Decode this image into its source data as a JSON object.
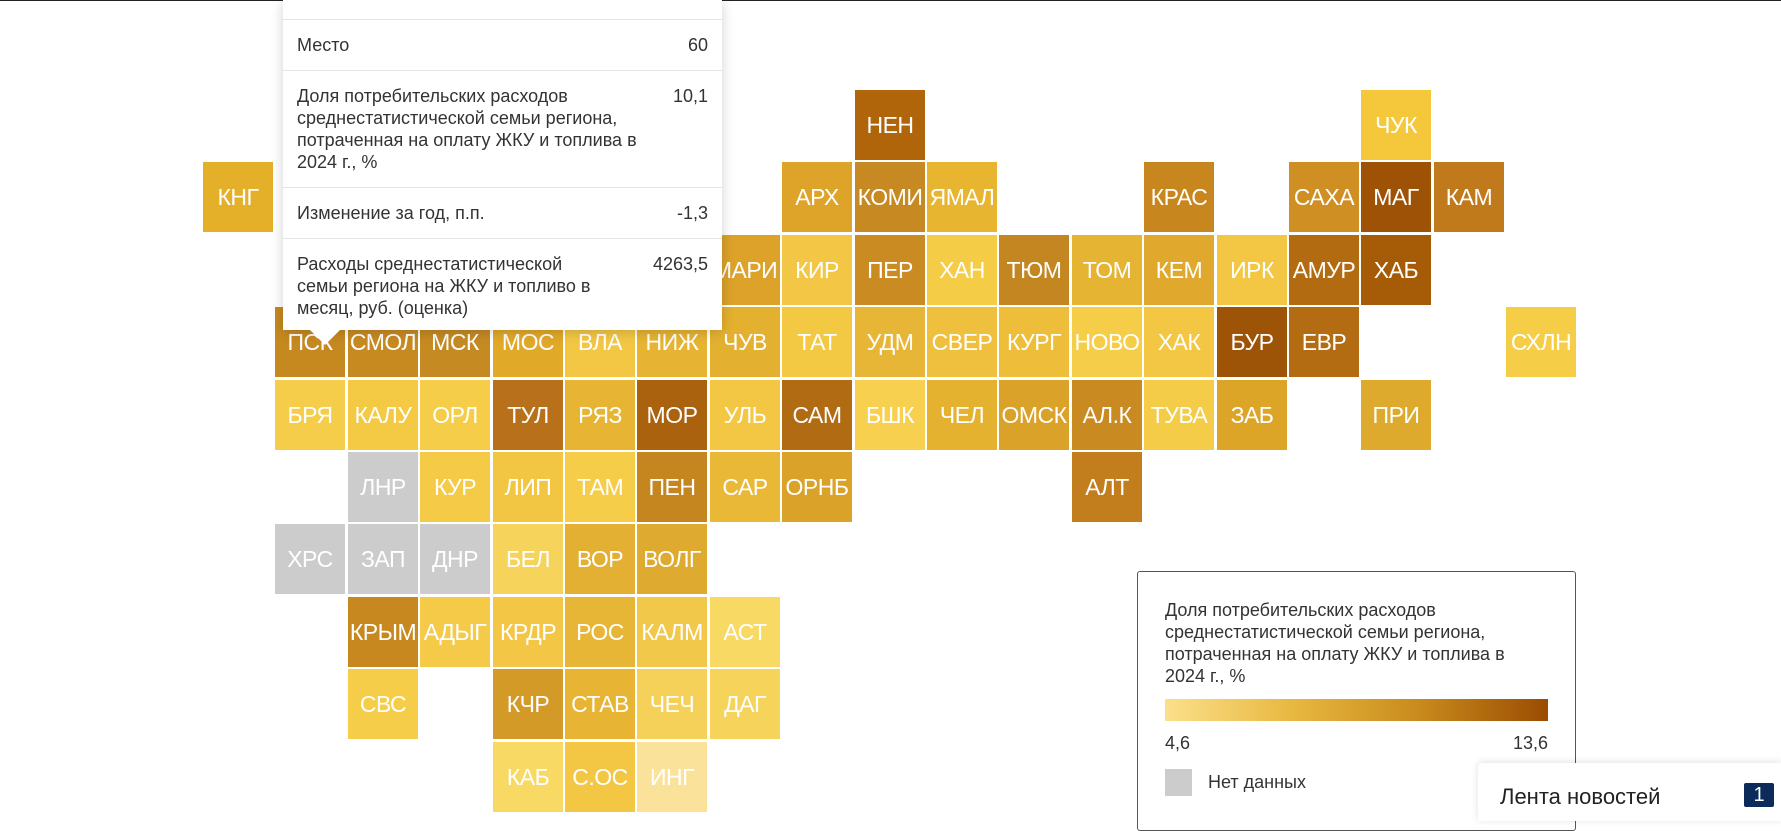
{
  "tooltip": {
    "rows": [
      {
        "label": "Место",
        "value": "60"
      },
      {
        "label": "Доля потребительских расходов среднестатистической семьи региона, потраченная на оплату ЖКУ и топлива в 2024 г., %",
        "value": "10,1"
      },
      {
        "label": "Изменение за год, п.п.",
        "value": "-1,3"
      },
      {
        "label": "Расходы среднестатистической семьи региона на ЖКУ и топливо в месяц, руб. (оценка)",
        "value": "4263,5"
      }
    ]
  },
  "legend": {
    "title": "Доля потребительских расходов среднестатистической семьи региона, потраченная на оплату ЖКУ и топлива в 2024 г., %",
    "min": "4,6",
    "max": "13,6",
    "no_data": "Нет данных",
    "colors": [
      "#fbe08a",
      "#e8b840",
      "#c88a1c",
      "#9a4c02"
    ],
    "no_data_color": "#cccccc"
  },
  "news": {
    "label": "Лента новостей",
    "count": "1"
  },
  "regions": [
    {
      "name": "НЕН",
      "col": 9,
      "row": 0,
      "color": "#b0650a"
    },
    {
      "name": "ЧУК",
      "col": 16,
      "row": 0,
      "color": "#f5c83b"
    },
    {
      "name": "КНГ",
      "col": 0,
      "row": 1,
      "color": "#e4b02a"
    },
    {
      "name": "АРХ",
      "col": 8,
      "row": 1,
      "color": "#dea42a"
    },
    {
      "name": "КОМИ",
      "col": 9,
      "row": 1,
      "color": "#c78922"
    },
    {
      "name": "ЯМАЛ",
      "col": 10,
      "row": 1,
      "color": "#e8b530"
    },
    {
      "name": "КРАС",
      "col": 13,
      "row": 1,
      "color": "#c8861f"
    },
    {
      "name": "САХА",
      "col": 15,
      "row": 1,
      "color": "#cf8f22"
    },
    {
      "name": "МАГ",
      "col": 16,
      "row": 1,
      "color": "#9e5205"
    },
    {
      "name": "КАМ",
      "col": 17,
      "row": 1,
      "color": "#c07a1c"
    },
    {
      "name": "МАРИ",
      "col": 7,
      "row": 2,
      "color": "#dca229"
    },
    {
      "name": "КИР",
      "col": 8,
      "row": 2,
      "color": "#f3c745"
    },
    {
      "name": "ПЕР",
      "col": 9,
      "row": 2,
      "color": "#c98b22"
    },
    {
      "name": "ХАН",
      "col": 10,
      "row": 2,
      "color": "#f5cc46"
    },
    {
      "name": "ТЮМ",
      "col": 11,
      "row": 2,
      "color": "#c38620"
    },
    {
      "name": "ТОМ",
      "col": 12,
      "row": 2,
      "color": "#e6b433"
    },
    {
      "name": "КЕМ",
      "col": 13,
      "row": 2,
      "color": "#e0a92d"
    },
    {
      "name": "ИРК",
      "col": 14,
      "row": 2,
      "color": "#f3c743"
    },
    {
      "name": "АМУР",
      "col": 15,
      "row": 2,
      "color": "#b26b10"
    },
    {
      "name": "ХАБ",
      "col": 16,
      "row": 2,
      "color": "#a65c07"
    },
    {
      "name": "ПСК",
      "col": 1,
      "row": 3,
      "color": "#c68920"
    },
    {
      "name": "СМОЛ",
      "col": 2,
      "row": 3,
      "color": "#c78a21"
    },
    {
      "name": "МСК",
      "col": 3,
      "row": 3,
      "color": "#c58a22"
    },
    {
      "name": "МОС",
      "col": 4,
      "row": 3,
      "color": "#e1a928"
    },
    {
      "name": "ВЛА",
      "col": 5,
      "row": 3,
      "color": "#f3c743"
    },
    {
      "name": "НИЖ",
      "col": 6,
      "row": 3,
      "color": "#e6b432"
    },
    {
      "name": "ЧУВ",
      "col": 7,
      "row": 3,
      "color": "#e4b02f"
    },
    {
      "name": "ТАТ",
      "col": 8,
      "row": 3,
      "color": "#f3c943"
    },
    {
      "name": "УДМ",
      "col": 9,
      "row": 3,
      "color": "#e8b636"
    },
    {
      "name": "СВЕР",
      "col": 10,
      "row": 3,
      "color": "#efc03e"
    },
    {
      "name": "КУРГ",
      "col": 11,
      "row": 3,
      "color": "#eebd3a"
    },
    {
      "name": "НОВО",
      "col": 12,
      "row": 3,
      "color": "#f6cd48"
    },
    {
      "name": "ХАК",
      "col": 13,
      "row": 3,
      "color": "#f3c744"
    },
    {
      "name": "БУР",
      "col": 14,
      "row": 3,
      "color": "#9e5406"
    },
    {
      "name": "ЕВР",
      "col": 15,
      "row": 3,
      "color": "#b36c12"
    },
    {
      "name": "СХЛН",
      "col": 18,
      "row": 3,
      "color": "#f6cd46"
    },
    {
      "name": "БРЯ",
      "col": 1,
      "row": 4,
      "color": "#f6cd4a"
    },
    {
      "name": "КАЛУ",
      "col": 2,
      "row": 4,
      "color": "#f4c944"
    },
    {
      "name": "ОРЛ",
      "col": 3,
      "row": 4,
      "color": "#f6cd49"
    },
    {
      "name": "ТУЛ",
      "col": 4,
      "row": 4,
      "color": "#b8711a"
    },
    {
      "name": "РЯЗ",
      "col": 5,
      "row": 4,
      "color": "#e7b433"
    },
    {
      "name": "МОР",
      "col": 6,
      "row": 4,
      "color": "#aa620f"
    },
    {
      "name": "УЛЬ",
      "col": 7,
      "row": 4,
      "color": "#f3c744"
    },
    {
      "name": "САМ",
      "col": 8,
      "row": 4,
      "color": "#b16b12"
    },
    {
      "name": "БШК",
      "col": 9,
      "row": 4,
      "color": "#f7d050"
    },
    {
      "name": "ЧЕЛ",
      "col": 10,
      "row": 4,
      "color": "#e5b230"
    },
    {
      "name": "ОМСК",
      "col": 11,
      "row": 4,
      "color": "#dba22a"
    },
    {
      "name": "АЛ.К",
      "col": 12,
      "row": 4,
      "color": "#c98a21"
    },
    {
      "name": "ТУВА",
      "col": 13,
      "row": 4,
      "color": "#f5cc48"
    },
    {
      "name": "ЗАБ",
      "col": 14,
      "row": 4,
      "color": "#dca528"
    },
    {
      "name": "ПРИ",
      "col": 16,
      "row": 4,
      "color": "#deaa2d"
    },
    {
      "name": "ЛНР",
      "col": 2,
      "row": 5,
      "color": "#cccccc"
    },
    {
      "name": "КУР",
      "col": 3,
      "row": 5,
      "color": "#f4ca46"
    },
    {
      "name": "ЛИП",
      "col": 4,
      "row": 5,
      "color": "#f2c643"
    },
    {
      "name": "ТАМ",
      "col": 5,
      "row": 5,
      "color": "#f6cd48"
    },
    {
      "name": "ПЕН",
      "col": 6,
      "row": 5,
      "color": "#c5861f"
    },
    {
      "name": "САР",
      "col": 7,
      "row": 5,
      "color": "#e9b836"
    },
    {
      "name": "ОРНБ",
      "col": 8,
      "row": 5,
      "color": "#dba22a"
    },
    {
      "name": "АЛТ",
      "col": 12,
      "row": 5,
      "color": "#c27d1c"
    },
    {
      "name": "ХРС",
      "col": 1,
      "row": 6,
      "color": "#cccccc"
    },
    {
      "name": "ЗАП",
      "col": 2,
      "row": 6,
      "color": "#cccccc"
    },
    {
      "name": "ДНР",
      "col": 3,
      "row": 6,
      "color": "#cccccc"
    },
    {
      "name": "БЕЛ",
      "col": 4,
      "row": 6,
      "color": "#f6d45c"
    },
    {
      "name": "ВОР",
      "col": 5,
      "row": 6,
      "color": "#e4b033"
    },
    {
      "name": "ВОЛГ",
      "col": 6,
      "row": 6,
      "color": "#deaa2f"
    },
    {
      "name": "КРЫМ",
      "col": 2,
      "row": 7,
      "color": "#c7891f"
    },
    {
      "name": "АДЫГ",
      "col": 3,
      "row": 7,
      "color": "#f4ca48"
    },
    {
      "name": "КРДР",
      "col": 4,
      "row": 7,
      "color": "#f3c745"
    },
    {
      "name": "РОС",
      "col": 5,
      "row": 7,
      "color": "#e8b637"
    },
    {
      "name": "КАЛМ",
      "col": 6,
      "row": 7,
      "color": "#f2c84a"
    },
    {
      "name": "АСТ",
      "col": 7,
      "row": 7,
      "color": "#f8d963"
    },
    {
      "name": "СВС",
      "col": 2,
      "row": 8,
      "color": "#f6cd48"
    },
    {
      "name": "КЧР",
      "col": 4,
      "row": 8,
      "color": "#d49a27"
    },
    {
      "name": "СТАВ",
      "col": 5,
      "row": 8,
      "color": "#e7b433"
    },
    {
      "name": "ЧЕЧ",
      "col": 6,
      "row": 8,
      "color": "#f6d15a"
    },
    {
      "name": "ДАГ",
      "col": 7,
      "row": 8,
      "color": "#f6d45c"
    },
    {
      "name": "КАБ",
      "col": 4,
      "row": 9,
      "color": "#f8d964"
    },
    {
      "name": "С.ОС",
      "col": 5,
      "row": 9,
      "color": "#f3c744"
    },
    {
      "name": "ИНГ",
      "col": 6,
      "row": 9,
      "color": "#fbe29b"
    }
  ]
}
